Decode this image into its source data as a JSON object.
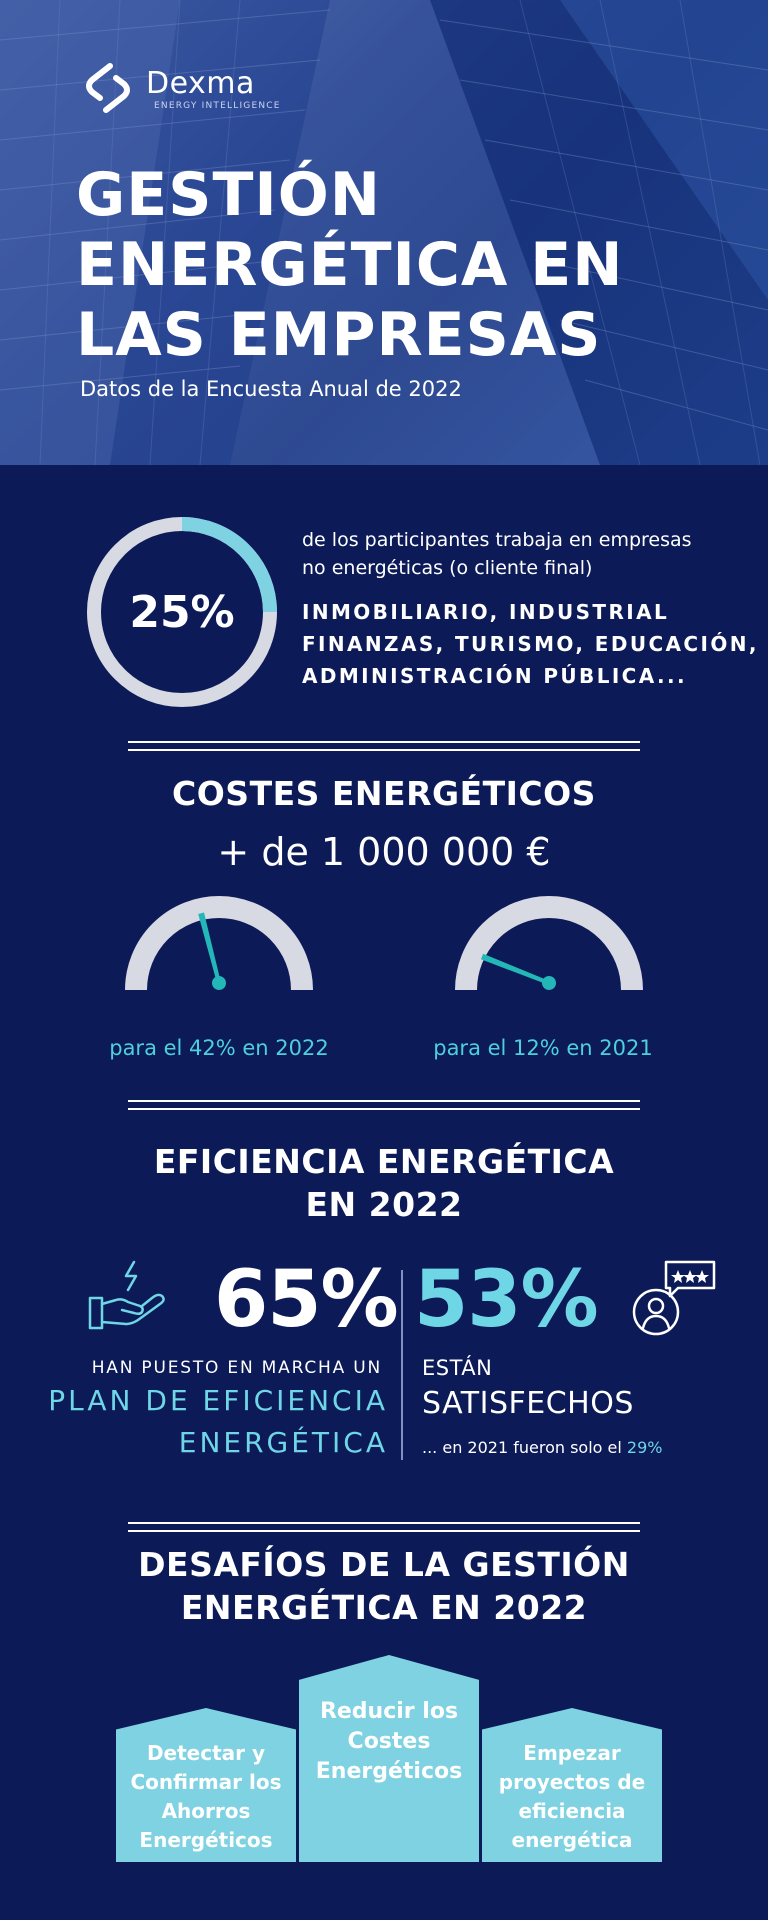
{
  "brand": {
    "name": "Dexma",
    "tagline": "ENERGY INTELLIGENCE"
  },
  "hero": {
    "title_lines": [
      "GESTIÓN",
      "ENERGÉTICA EN",
      "LAS EMPRESAS"
    ],
    "subtitle": "Datos de la Encuesta Anual de 2022"
  },
  "participants": {
    "percent_label": "25%",
    "percent_value": 25,
    "description_lines": [
      "de los participantes trabaja en empresas",
      "no energéticas (o cliente final)"
    ],
    "sectors_lines": [
      "INMOBILIARIO, INDUSTRIAL",
      "FINANZAS, TURISMO, EDUCACIÓN,",
      "ADMINISTRACIÓN PÚBLICA..."
    ]
  },
  "costs": {
    "title": "COSTES ENERGÉTICOS",
    "value": "+ de 1 000 000 €",
    "gauges": [
      {
        "caption": "para el 42% en 2022",
        "value": 42
      },
      {
        "caption": "para el 12% en 2021",
        "value": 12
      }
    ]
  },
  "efficiency": {
    "title_lines": [
      "EFICIENCIA ENERGÉTICA",
      "EN 2022"
    ],
    "left": {
      "percent": "65%",
      "small": "HAN PUESTO EN MARCHA UN",
      "plan_lines": [
        "PLAN DE EFICIENCIA",
        "ENERGÉTICA"
      ]
    },
    "right": {
      "percent": "53%",
      "line1": "ESTÁN",
      "line2": "SATISFECHOS",
      "note_prefix": "... en 2021 fueron solo el ",
      "note_highlight": "29%"
    }
  },
  "challenges": {
    "title_lines": [
      "DESAFÍOS DE LA GESTIÓN",
      "ENERGÉTICA EN 2022"
    ],
    "items": [
      {
        "lines": [
          "Detectar y",
          "Confirmar los",
          "Ahorros",
          "Energéticos"
        ]
      },
      {
        "lines": [
          "Reducir los",
          "Costes",
          "Energéticos"
        ]
      },
      {
        "lines": [
          "Empezar",
          "proyectos de",
          "eficiencia",
          "energética"
        ]
      }
    ]
  },
  "colors": {
    "background": "#0c1a57",
    "accent": "#4ecfdc",
    "light_accent": "#7ed2e2",
    "gauge_track": "#d7d9e3",
    "needle": "#24b7b8"
  }
}
